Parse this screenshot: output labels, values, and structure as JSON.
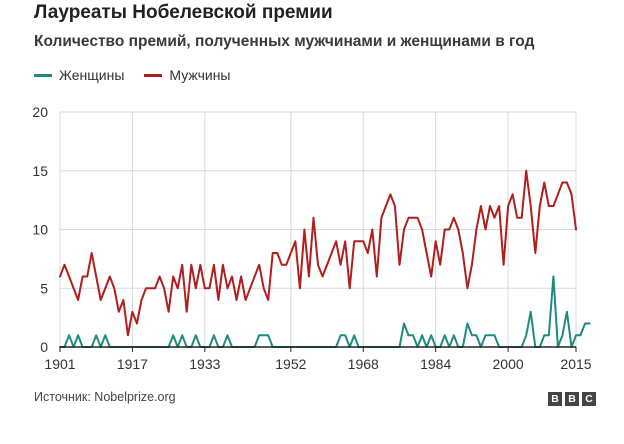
{
  "header": {
    "title": "Лауреаты Нобелевской премии",
    "subtitle": "Количество премий, полученных мужчинами и женщинами в год"
  },
  "source": "Источник: Nobelprize.org",
  "logo": {
    "letters": [
      "B",
      "B",
      "C"
    ]
  },
  "colors": {
    "women": "#1f8a80",
    "men": "#b01e1e",
    "grid": "#d9d9d9",
    "axis": "#222222"
  },
  "chart_data": {
    "type": "line",
    "xlim": [
      1901,
      2015
    ],
    "ylim": [
      0,
      20
    ],
    "yticks": [
      0,
      5,
      10,
      15,
      20
    ],
    "xticks": [
      1901,
      1917,
      1933,
      1952,
      1968,
      1984,
      2000,
      2015
    ],
    "grid": true,
    "legend_position": "top-left",
    "series": [
      {
        "name": "Женщины",
        "color": "#1f8a80",
        "points": [
          [
            1901,
            0
          ],
          [
            1902,
            0
          ],
          [
            1903,
            1
          ],
          [
            1904,
            0
          ],
          [
            1905,
            1
          ],
          [
            1906,
            0
          ],
          [
            1907,
            0
          ],
          [
            1908,
            0
          ],
          [
            1909,
            1
          ],
          [
            1910,
            0
          ],
          [
            1911,
            1
          ],
          [
            1912,
            0
          ],
          [
            1913,
            0
          ],
          [
            1914,
            0
          ],
          [
            1915,
            0
          ],
          [
            1916,
            0
          ],
          [
            1917,
            0
          ],
          [
            1918,
            0
          ],
          [
            1919,
            0
          ],
          [
            1920,
            0
          ],
          [
            1921,
            0
          ],
          [
            1922,
            0
          ],
          [
            1923,
            0
          ],
          [
            1924,
            0
          ],
          [
            1925,
            0
          ],
          [
            1926,
            1
          ],
          [
            1927,
            0
          ],
          [
            1928,
            1
          ],
          [
            1929,
            0
          ],
          [
            1930,
            0
          ],
          [
            1931,
            1
          ],
          [
            1932,
            0
          ],
          [
            1933,
            0
          ],
          [
            1934,
            0
          ],
          [
            1935,
            1
          ],
          [
            1936,
            0
          ],
          [
            1937,
            0
          ],
          [
            1938,
            1
          ],
          [
            1939,
            0
          ],
          [
            1940,
            0
          ],
          [
            1941,
            0
          ],
          [
            1942,
            0
          ],
          [
            1943,
            0
          ],
          [
            1944,
            0
          ],
          [
            1945,
            1
          ],
          [
            1946,
            1
          ],
          [
            1947,
            1
          ],
          [
            1948,
            0
          ],
          [
            1949,
            0
          ],
          [
            1950,
            0
          ],
          [
            1951,
            0
          ],
          [
            1952,
            0
          ],
          [
            1953,
            0
          ],
          [
            1954,
            0
          ],
          [
            1955,
            0
          ],
          [
            1956,
            0
          ],
          [
            1957,
            0
          ],
          [
            1958,
            0
          ],
          [
            1959,
            0
          ],
          [
            1960,
            0
          ],
          [
            1961,
            0
          ],
          [
            1962,
            0
          ],
          [
            1963,
            1
          ],
          [
            1964,
            1
          ],
          [
            1965,
            0
          ],
          [
            1966,
            1
          ],
          [
            1967,
            0
          ],
          [
            1968,
            0
          ],
          [
            1969,
            0
          ],
          [
            1970,
            0
          ],
          [
            1971,
            0
          ],
          [
            1972,
            0
          ],
          [
            1973,
            0
          ],
          [
            1974,
            0
          ],
          [
            1975,
            0
          ],
          [
            1976,
            0
          ],
          [
            1977,
            2
          ],
          [
            1978,
            1
          ],
          [
            1979,
            1
          ],
          [
            1980,
            0
          ],
          [
            1981,
            1
          ],
          [
            1982,
            0
          ],
          [
            1983,
            1
          ],
          [
            1984,
            0
          ],
          [
            1985,
            0
          ],
          [
            1986,
            1
          ],
          [
            1987,
            0
          ],
          [
            1988,
            1
          ],
          [
            1989,
            0
          ],
          [
            1990,
            0
          ],
          [
            1991,
            2
          ],
          [
            1992,
            1
          ],
          [
            1993,
            1
          ],
          [
            1994,
            0
          ],
          [
            1995,
            1
          ],
          [
            1996,
            1
          ],
          [
            1997,
            1
          ],
          [
            1998,
            0
          ],
          [
            1999,
            0
          ],
          [
            2000,
            0
          ],
          [
            2001,
            0
          ],
          [
            2002,
            0
          ],
          [
            2003,
            0
          ],
          [
            2004,
            1
          ],
          [
            2005,
            3
          ],
          [
            2006,
            0
          ],
          [
            2007,
            0
          ],
          [
            2008,
            1
          ],
          [
            2009,
            1
          ],
          [
            2010,
            6
          ],
          [
            2011,
            0
          ],
          [
            2012,
            1
          ],
          [
            2013,
            3
          ],
          [
            2014,
            0
          ],
          [
            2015,
            1
          ],
          [
            2016,
            1
          ],
          [
            2017,
            2
          ],
          [
            2018,
            2
          ]
        ]
      },
      {
        "name": "Мужчины",
        "color": "#b01e1e",
        "points": [
          [
            1901,
            6
          ],
          [
            1902,
            7
          ],
          [
            1903,
            6
          ],
          [
            1904,
            5
          ],
          [
            1905,
            4
          ],
          [
            1906,
            6
          ],
          [
            1907,
            6
          ],
          [
            1908,
            8
          ],
          [
            1909,
            6
          ],
          [
            1910,
            4
          ],
          [
            1911,
            5
          ],
          [
            1912,
            6
          ],
          [
            1913,
            5
          ],
          [
            1914,
            3
          ],
          [
            1915,
            4
          ],
          [
            1916,
            1
          ],
          [
            1917,
            3
          ],
          [
            1918,
            2
          ],
          [
            1919,
            4
          ],
          [
            1920,
            5
          ],
          [
            1921,
            5
          ],
          [
            1922,
            5
          ],
          [
            1923,
            6
          ],
          [
            1924,
            5
          ],
          [
            1925,
            3
          ],
          [
            1926,
            6
          ],
          [
            1927,
            5
          ],
          [
            1928,
            7
          ],
          [
            1929,
            3
          ],
          [
            1930,
            7
          ],
          [
            1931,
            5
          ],
          [
            1932,
            7
          ],
          [
            1933,
            5
          ],
          [
            1934,
            5
          ],
          [
            1935,
            7
          ],
          [
            1936,
            4
          ],
          [
            1937,
            7
          ],
          [
            1938,
            5
          ],
          [
            1939,
            6
          ],
          [
            1940,
            4
          ],
          [
            1941,
            6
          ],
          [
            1942,
            4
          ],
          [
            1943,
            5
          ],
          [
            1944,
            6
          ],
          [
            1945,
            7
          ],
          [
            1946,
            5
          ],
          [
            1947,
            4
          ],
          [
            1948,
            8
          ],
          [
            1949,
            8
          ],
          [
            1950,
            7
          ],
          [
            1951,
            7
          ],
          [
            1952,
            8
          ],
          [
            1953,
            9
          ],
          [
            1954,
            5
          ],
          [
            1955,
            10
          ],
          [
            1956,
            6
          ],
          [
            1957,
            11
          ],
          [
            1958,
            7
          ],
          [
            1959,
            6
          ],
          [
            1960,
            7
          ],
          [
            1961,
            8
          ],
          [
            1962,
            9
          ],
          [
            1963,
            7
          ],
          [
            1964,
            9
          ],
          [
            1965,
            5
          ],
          [
            1966,
            9
          ],
          [
            1967,
            9
          ],
          [
            1968,
            9
          ],
          [
            1969,
            8
          ],
          [
            1970,
            10
          ],
          [
            1971,
            6
          ],
          [
            1972,
            11
          ],
          [
            1973,
            12
          ],
          [
            1974,
            13
          ],
          [
            1975,
            12
          ],
          [
            1976,
            7
          ],
          [
            1977,
            10
          ],
          [
            1978,
            11
          ],
          [
            1979,
            11
          ],
          [
            1980,
            11
          ],
          [
            1981,
            10
          ],
          [
            1982,
            8
          ],
          [
            1983,
            6
          ],
          [
            1984,
            9
          ],
          [
            1985,
            7
          ],
          [
            1986,
            10
          ],
          [
            1987,
            10
          ],
          [
            1988,
            11
          ],
          [
            1989,
            10
          ],
          [
            1990,
            8
          ],
          [
            1991,
            5
          ],
          [
            1992,
            7
          ],
          [
            1993,
            10
          ],
          [
            1994,
            12
          ],
          [
            1995,
            10
          ],
          [
            1996,
            12
          ],
          [
            1997,
            11
          ],
          [
            1998,
            12
          ],
          [
            1999,
            7
          ],
          [
            2000,
            12
          ],
          [
            2001,
            13
          ],
          [
            2002,
            11
          ],
          [
            2003,
            11
          ],
          [
            2004,
            15
          ],
          [
            2005,
            12
          ],
          [
            2006,
            8
          ],
          [
            2007,
            12
          ],
          [
            2008,
            14
          ],
          [
            2009,
            12
          ],
          [
            2010,
            12
          ],
          [
            2011,
            13
          ],
          [
            2012,
            14
          ],
          [
            2013,
            14
          ],
          [
            2014,
            13
          ],
          [
            2015,
            10
          ]
        ]
      }
    ]
  }
}
